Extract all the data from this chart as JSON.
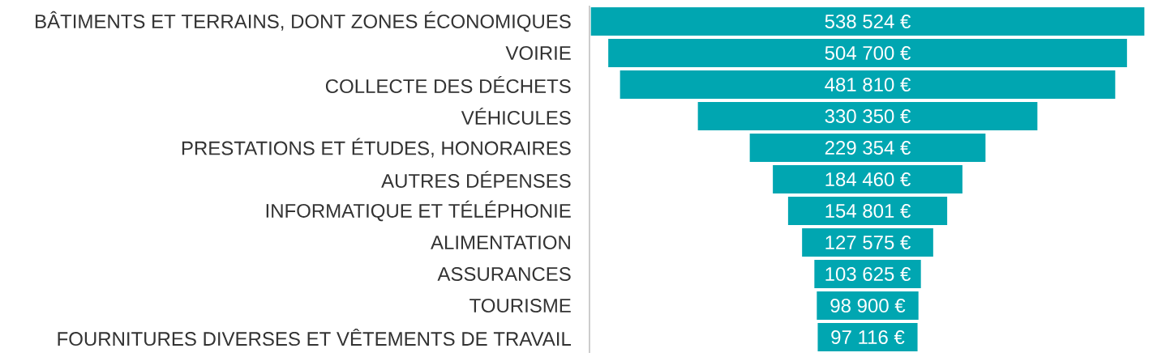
{
  "chart_data": {
    "type": "other",
    "categories": [
      "BÂTIMENTS ET TERRAINS, DONT ZONES ÉCONOMIQUES",
      "VOIRIE",
      "COLLECTE DES DÉCHETS",
      "VÉHICULES",
      "PRESTATIONS ET ÉTUDES, HONORAIRES",
      "AUTRES DÉPENSES",
      "INFORMATIQUE ET TÉLÉPHONIE",
      "ALIMENTATION",
      "ASSURANCES",
      "TOURISME",
      "FOURNITURES DIVERSES ET VÊTEMENTS DE TRAVAIL"
    ],
    "values": [
      538524,
      504700,
      481810,
      330350,
      229354,
      184460,
      154801,
      127575,
      103625,
      98900,
      97116
    ],
    "value_labels": [
      "538 524 €",
      "504 700 €",
      "481 810 €",
      "330 350 €",
      "229 354 €",
      "184 460 €",
      "154 801 €",
      "127 575 €",
      "103 625 €",
      "98 900 €",
      "97 116 €"
    ],
    "color": "#00a6b1"
  }
}
